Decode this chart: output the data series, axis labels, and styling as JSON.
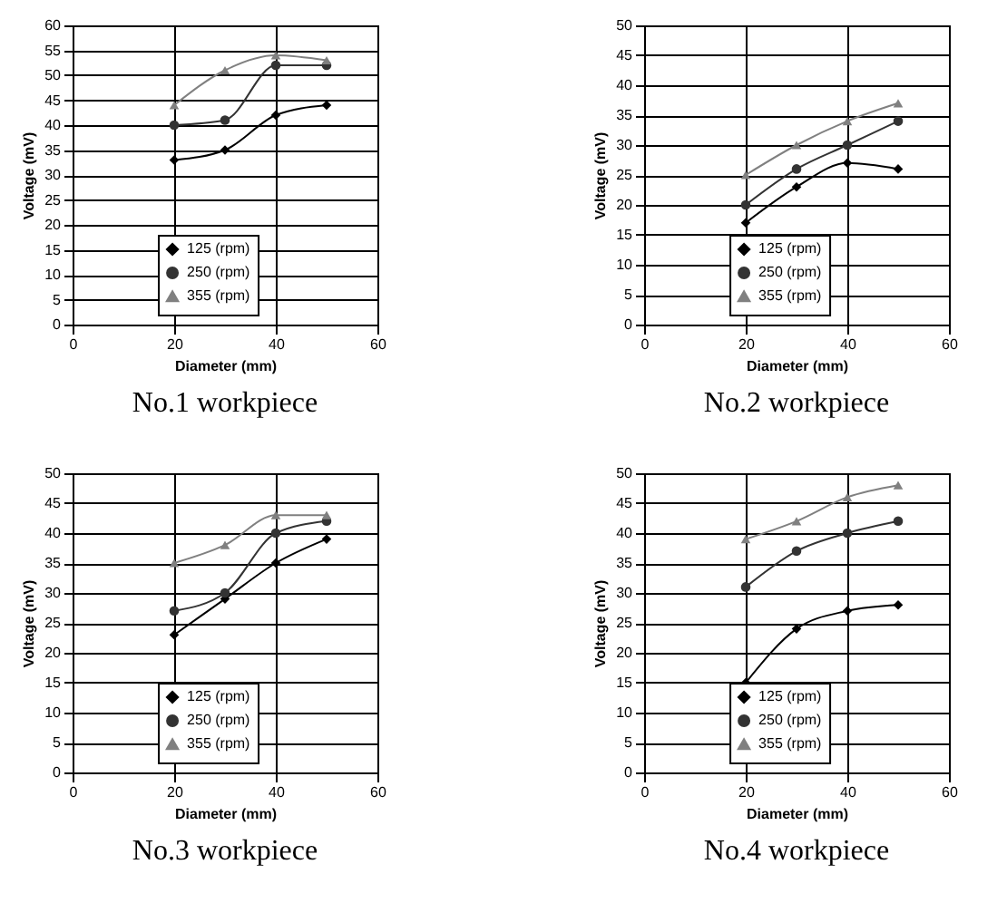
{
  "chart_data": [
    {
      "type": "line",
      "title": "No.1 workpiece",
      "xlabel": "Diameter (mm)",
      "ylabel": "Voltage (mV)",
      "x": [
        20,
        30,
        40,
        50
      ],
      "xlim": [
        0,
        60
      ],
      "xticks": [
        0,
        20,
        40,
        60
      ],
      "ylim": [
        0,
        60
      ],
      "yticks": [
        0,
        5,
        10,
        15,
        20,
        25,
        30,
        35,
        40,
        45,
        50,
        55,
        60
      ],
      "grid": true,
      "legend": "bottom",
      "series": [
        {
          "name": "125 (rpm)",
          "color": "#000000",
          "marker": "diamond",
          "values": [
            33,
            35,
            42,
            44
          ]
        },
        {
          "name": "250 (rpm)",
          "color": "#333333",
          "marker": "circle",
          "values": [
            40,
            41,
            52,
            52
          ]
        },
        {
          "name": "355 (rpm)",
          "color": "#808080",
          "marker": "triangle",
          "values": [
            44,
            51,
            54,
            53
          ]
        }
      ]
    },
    {
      "type": "line",
      "title": "No.2 workpiece",
      "xlabel": "Diameter (mm)",
      "ylabel": "Voltage (mV)",
      "x": [
        20,
        30,
        40,
        50
      ],
      "xlim": [
        0,
        60
      ],
      "xticks": [
        0,
        20,
        40,
        60
      ],
      "ylim": [
        0,
        50
      ],
      "yticks": [
        0,
        5,
        10,
        15,
        20,
        25,
        30,
        35,
        40,
        45,
        50
      ],
      "grid": true,
      "legend": "bottom",
      "series": [
        {
          "name": "125 (rpm)",
          "color": "#000000",
          "marker": "diamond",
          "values": [
            17,
            23,
            27,
            26
          ]
        },
        {
          "name": "250 (rpm)",
          "color": "#333333",
          "marker": "circle",
          "values": [
            20,
            26,
            30,
            34
          ]
        },
        {
          "name": "355 (rpm)",
          "color": "#808080",
          "marker": "triangle",
          "values": [
            25,
            30,
            34,
            37
          ]
        }
      ]
    },
    {
      "type": "line",
      "title": "No.3 workpiece",
      "xlabel": "Diameter (mm)",
      "ylabel": "Voltage (mV)",
      "x": [
        20,
        30,
        40,
        50
      ],
      "xlim": [
        0,
        60
      ],
      "xticks": [
        0,
        20,
        40,
        60
      ],
      "ylim": [
        0,
        50
      ],
      "yticks": [
        0,
        5,
        10,
        15,
        20,
        25,
        30,
        35,
        40,
        45,
        50
      ],
      "grid": true,
      "legend": "bottom",
      "series": [
        {
          "name": "125 (rpm)",
          "color": "#000000",
          "marker": "diamond",
          "values": [
            23,
            29,
            35,
            39
          ]
        },
        {
          "name": "250 (rpm)",
          "color": "#333333",
          "marker": "circle",
          "values": [
            27,
            30,
            40,
            42
          ]
        },
        {
          "name": "355 (rpm)",
          "color": "#808080",
          "marker": "triangle",
          "values": [
            35,
            38,
            43,
            43
          ]
        }
      ]
    },
    {
      "type": "line",
      "title": "No.4 workpiece",
      "xlabel": "Diameter (mm)",
      "ylabel": "Voltage (mV)",
      "x": [
        20,
        30,
        40,
        50
      ],
      "xlim": [
        0,
        60
      ],
      "xticks": [
        0,
        20,
        40,
        60
      ],
      "ylim": [
        0,
        50
      ],
      "yticks": [
        0,
        5,
        10,
        15,
        20,
        25,
        30,
        35,
        40,
        45,
        50
      ],
      "grid": true,
      "legend": "bottom",
      "series": [
        {
          "name": "125 (rpm)",
          "color": "#000000",
          "marker": "diamond",
          "values": [
            15,
            24,
            27,
            28
          ]
        },
        {
          "name": "250 (rpm)",
          "color": "#333333",
          "marker": "circle",
          "values": [
            31,
            37,
            40,
            42
          ]
        },
        {
          "name": "355 (rpm)",
          "color": "#808080",
          "marker": "triangle",
          "values": [
            39,
            42,
            46,
            48
          ]
        }
      ]
    }
  ]
}
